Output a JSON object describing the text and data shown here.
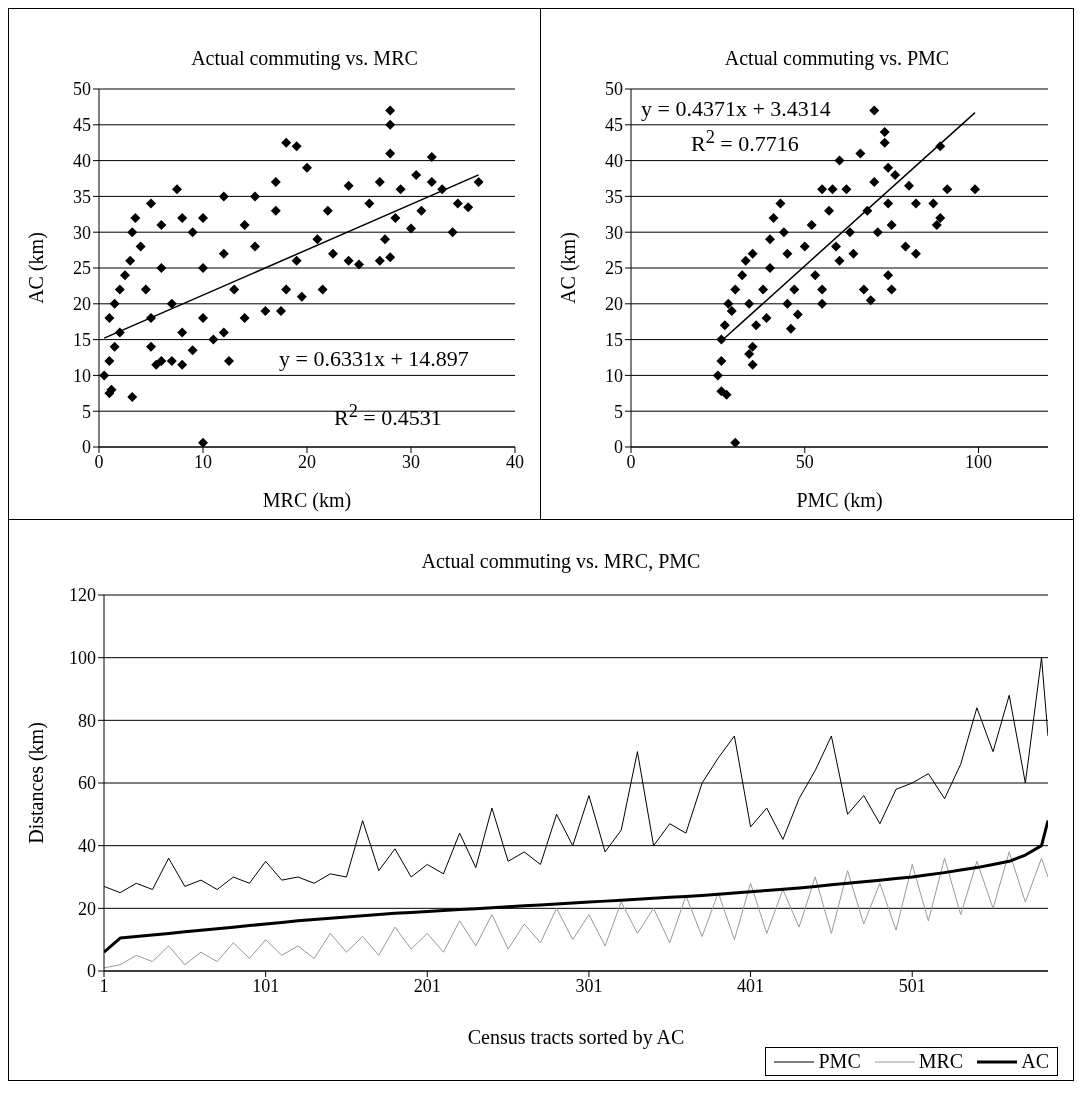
{
  "chart_data": [
    {
      "type": "scatter",
      "title": "Actual commuting vs. MRC",
      "xlabel": "MRC (km)",
      "ylabel": "AC (km)",
      "xlim": [
        0,
        40
      ],
      "xticks": [
        0,
        10,
        20,
        30,
        40
      ],
      "ylim": [
        0,
        50
      ],
      "yticks": [
        0,
        5,
        10,
        15,
        20,
        25,
        30,
        35,
        40,
        45,
        50
      ],
      "grid": "y",
      "marker": "diamond",
      "annotations": [
        "y = 0.6331x + 14.897",
        "R$^{2}$ = 0.4531"
      ],
      "series": [
        {
          "color": "#000000",
          "x": [
            10,
            1,
            1.2,
            3.2,
            0.5,
            1,
            1.5,
            2,
            1,
            1.5,
            2,
            2.5,
            3,
            3.2,
            3.5,
            4,
            5,
            4.5,
            5,
            5,
            6,
            5.5,
            7,
            8,
            9,
            8,
            7,
            6,
            6,
            7.5,
            8,
            9,
            10,
            10,
            10,
            11,
            12,
            12.5,
            12,
            12,
            13,
            14,
            14,
            15,
            15,
            16,
            17,
            17,
            17.5,
            18,
            18,
            19,
            19,
            19.5,
            20,
            21,
            21.5,
            22,
            22.5,
            24,
            24,
            25,
            26,
            27,
            27,
            27.5,
            28,
            28,
            28,
            28,
            28.5,
            29,
            30,
            30.5,
            31,
            32,
            32,
            33,
            34,
            34.5,
            35.5,
            36.5
          ],
          "values": [
            0.6,
            7.5,
            8,
            7,
            10,
            12,
            14,
            16,
            18,
            20,
            22,
            24,
            26,
            30,
            32,
            28,
            34,
            22,
            18,
            14,
            12,
            11.5,
            12,
            11.5,
            13.5,
            16,
            20,
            25,
            31,
            36,
            32,
            30,
            32,
            25,
            18,
            15,
            16,
            12,
            27,
            35,
            22,
            31,
            18,
            35,
            28,
            19,
            37,
            33,
            19,
            42.5,
            22,
            42,
            26,
            21,
            39,
            29,
            22,
            33,
            27,
            36.5,
            26,
            25.5,
            34,
            37,
            26,
            29,
            47,
            45,
            41,
            26.5,
            32,
            36,
            30.5,
            38,
            33,
            40.5,
            37,
            36,
            30,
            34,
            33.5,
            37
          ]
        },
        {
          "type": "line",
          "marker": "none",
          "color": "#000000",
          "x": [
            0.5,
            36.5
          ],
          "values": [
            15.2,
            38.0
          ]
        }
      ]
    },
    {
      "type": "scatter",
      "title": "Actual commuting vs. PMC",
      "xlabel": "PMC (km)",
      "ylabel": "AC (km)",
      "xlim": [
        0,
        120
      ],
      "xticks": [
        0,
        50,
        100
      ],
      "ylim": [
        0,
        50
      ],
      "yticks": [
        0,
        5,
        10,
        15,
        20,
        25,
        30,
        35,
        40,
        45,
        50
      ],
      "grid": "y",
      "marker": "diamond",
      "annotations": [
        "y = 0.4371x + 3.4314",
        "R$^{2}$ = 0.7716"
      ],
      "series": [
        {
          "color": "#000000",
          "x": [
            30,
            26,
            27.5,
            25,
            26,
            26,
            27,
            28,
            29,
            30,
            32,
            33,
            35,
            34,
            36,
            35,
            34,
            35,
            38,
            39,
            40,
            40,
            41,
            43,
            44,
            45,
            45,
            46,
            47,
            48,
            50,
            52,
            53,
            55,
            55,
            55,
            57,
            58,
            59,
            60,
            60,
            62,
            63,
            64,
            66,
            67,
            68,
            69,
            70,
            70,
            71,
            73,
            73,
            74,
            74,
            74,
            75,
            75,
            76,
            79,
            80,
            82,
            82,
            87,
            88,
            89,
            89,
            91,
            99
          ],
          "values": [
            0.6,
            7.8,
            7.3,
            10,
            12,
            15,
            17,
            20,
            19,
            22,
            24,
            26,
            27,
            20,
            17,
            14,
            13,
            11.5,
            22,
            18,
            25,
            29,
            32,
            34,
            30,
            27,
            20,
            16.5,
            22,
            18.5,
            28,
            31,
            24,
            36,
            22,
            20,
            33,
            36,
            28,
            40,
            26,
            36,
            30,
            27,
            41,
            22,
            33,
            20.5,
            37,
            47,
            30,
            44,
            42.5,
            39,
            34,
            24,
            22,
            31,
            38,
            28,
            36.5,
            27,
            34,
            34,
            31,
            32,
            42,
            36,
            36
          ]
        },
        {
          "type": "line",
          "marker": "none",
          "color": "#000000",
          "x": [
            26,
            99
          ],
          "values": [
            14.8,
            46.7
          ]
        }
      ]
    },
    {
      "type": "line",
      "title": "Actual commuting vs. MRC, PMC",
      "xlabel": "Census tracts sorted by AC",
      "ylabel": "Distances (km)",
      "xlim": [
        1,
        585
      ],
      "xticks": [
        1,
        101,
        201,
        301,
        401,
        501
      ],
      "ylim": [
        0,
        120
      ],
      "yticks": [
        0,
        20,
        40,
        60,
        80,
        100,
        120
      ],
      "grid": "y",
      "marker": "none",
      "line_style": "solid",
      "legend": "bottom right",
      "x": [
        1,
        11,
        21,
        31,
        41,
        51,
        61,
        71,
        81,
        91,
        101,
        111,
        121,
        131,
        141,
        151,
        161,
        171,
        181,
        191,
        201,
        211,
        221,
        231,
        241,
        251,
        261,
        271,
        281,
        291,
        301,
        311,
        321,
        331,
        341,
        351,
        361,
        371,
        381,
        391,
        401,
        411,
        421,
        431,
        441,
        451,
        461,
        471,
        481,
        491,
        501,
        511,
        521,
        531,
        541,
        551,
        561,
        571,
        581,
        585
      ],
      "series": [
        {
          "name": "PMC",
          "color": "#000000",
          "values": [
            27,
            25,
            28,
            26,
            36,
            27,
            29,
            26,
            30,
            28,
            35,
            29,
            30,
            28,
            31,
            30,
            48,
            32,
            39,
            30,
            34,
            31,
            44,
            33,
            52,
            35,
            38,
            34,
            50,
            40,
            56,
            38,
            45,
            70,
            40,
            47,
            44,
            60,
            68,
            75,
            46,
            52,
            42,
            55,
            64,
            75,
            50,
            56,
            47,
            58,
            60,
            63,
            55,
            66,
            84,
            70,
            88,
            60,
            100,
            75
          ]
        },
        {
          "name": "MRC",
          "color": "#999999",
          "values": [
            1,
            2,
            5,
            3,
            8,
            2,
            6,
            3,
            9,
            4,
            10,
            5,
            8,
            4,
            12,
            6,
            11,
            5,
            14,
            7,
            12,
            6,
            16,
            8,
            18,
            7,
            15,
            9,
            20,
            10,
            18,
            8,
            22,
            12,
            20,
            9,
            24,
            11,
            25,
            10,
            28,
            12,
            26,
            14,
            30,
            12,
            32,
            15,
            28,
            13,
            34,
            16,
            36,
            18,
            35,
            20,
            38,
            22,
            36,
            30
          ]
        },
        {
          "name": "AC",
          "color": "#000000",
          "values": [
            6,
            10.5,
            11,
            11.5,
            12,
            12.5,
            13,
            13.5,
            14,
            14.5,
            15,
            15.5,
            16,
            16.4,
            16.8,
            17.2,
            17.6,
            18,
            18.4,
            18.7,
            19,
            19.3,
            19.6,
            19.9,
            20.2,
            20.5,
            20.8,
            21.1,
            21.4,
            21.7,
            22,
            22.3,
            22.6,
            22.9,
            23.2,
            23.5,
            23.8,
            24.1,
            24.5,
            24.9,
            25.3,
            25.7,
            26.1,
            26.5,
            27,
            27.5,
            28,
            28.5,
            29,
            29.5,
            30,
            30.7,
            31.4,
            32.2,
            33,
            34,
            35,
            37,
            40,
            48
          ]
        }
      ]
    }
  ]
}
